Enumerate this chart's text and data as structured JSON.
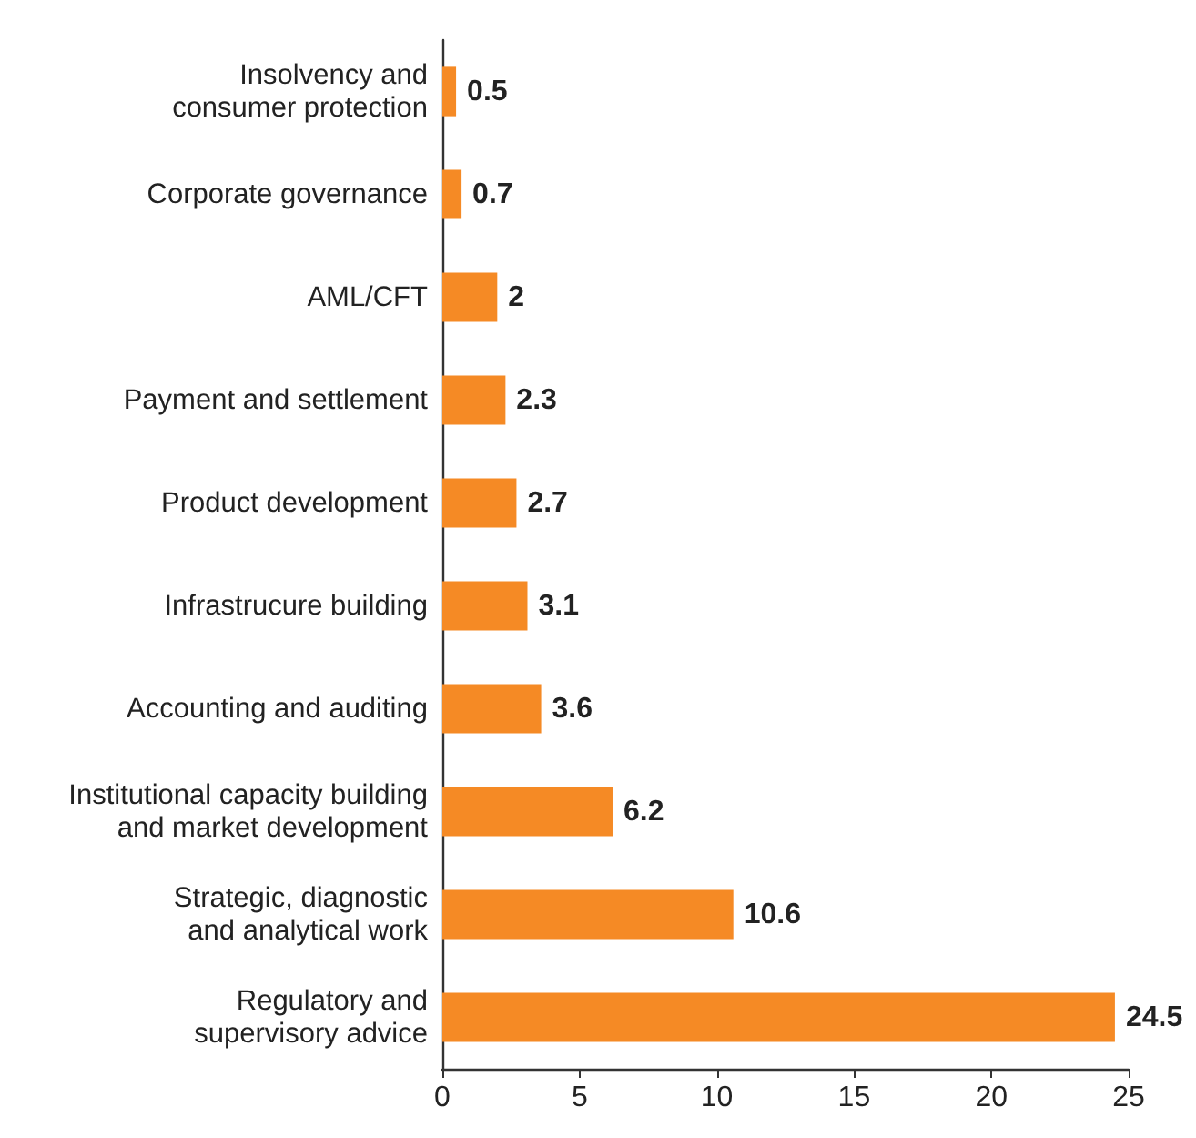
{
  "chart_data": {
    "type": "bar",
    "orientation": "horizontal",
    "categories": [
      "Insolvency and\nconsumer protection",
      "Corporate governance",
      "AML/CFT",
      "Payment and settlement",
      "Product development",
      "Infrastrucure building",
      "Accounting and auditing",
      "Institutional capacity building\nand market development",
      "Strategic, diagnostic\nand analytical work",
      "Regulatory and\nsupervisory advice"
    ],
    "values": [
      0.5,
      0.7,
      2,
      2.3,
      2.7,
      3.1,
      3.6,
      6.2,
      10.6,
      24.5
    ],
    "color": "#f58a25",
    "xlim": [
      0,
      25
    ],
    "xticks": [
      0,
      5,
      10,
      15,
      20,
      25
    ],
    "data_labels": true
  }
}
